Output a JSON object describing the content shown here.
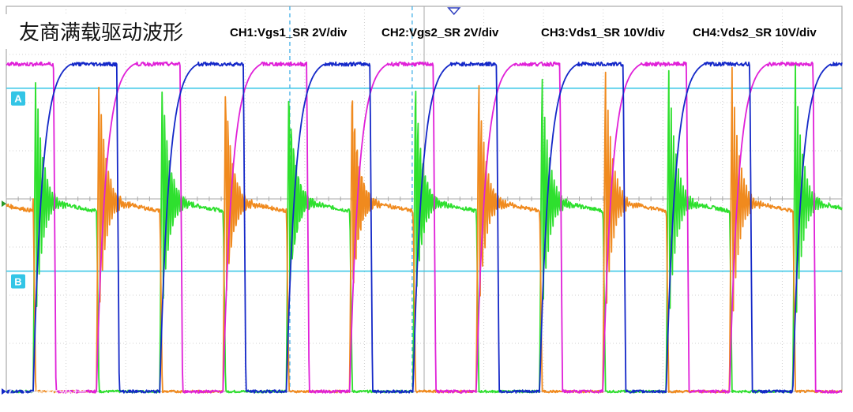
{
  "chart_data": {
    "type": "line",
    "title": "友商满载驱动波形",
    "xlabel": "",
    "ylabel": "",
    "grid": true,
    "grid_divisions": {
      "x": 14,
      "y": 8
    },
    "legend_position": "top",
    "series": [
      {
        "id": "ch1",
        "name": "CH1:Vgs1_SR 2V/div",
        "color": "#1428c8",
        "kind": "gate",
        "phase": 0.0
      },
      {
        "id": "ch2",
        "name": "CH2:Vgs2_SR 2V/div",
        "color": "#e020d8",
        "kind": "gate",
        "phase": 0.5
      },
      {
        "id": "ch3",
        "name": "CH3:Vds1_SR 10V/div",
        "color": "#f08a1e",
        "kind": "drain",
        "phase": 0.5
      },
      {
        "id": "ch4",
        "name": "CH4:Vds2_SR 10V/div",
        "color": "#2ee02e",
        "kind": "drain",
        "phase": 0.0
      }
    ],
    "time_base": {
      "periods_shown": 6.6,
      "first_rise_div": 0.45
    },
    "gate_levels_div": {
      "low": 0.0,
      "high": 6.8
    },
    "drain_levels_div": {
      "low": 0.0,
      "plateau": 4.0,
      "overshoot": 6.8
    },
    "cursors": [
      {
        "label": "A",
        "level_div": 6.3
      },
      {
        "label": "B",
        "level_div": 2.5
      }
    ],
    "vertical_cursors_div": [
      4.75,
      6.8
    ],
    "trigger_marker_div": 7.5
  },
  "watermark": "大数跨境"
}
